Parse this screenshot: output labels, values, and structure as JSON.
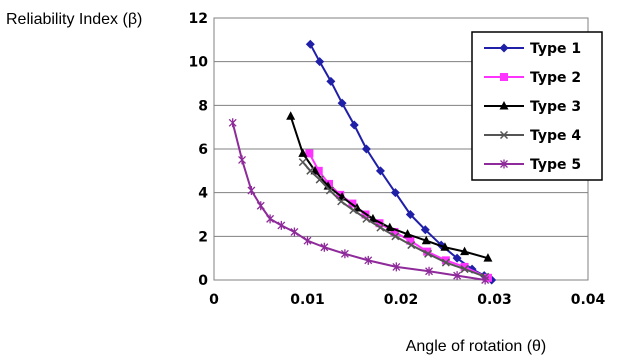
{
  "chart_data": {
    "type": "line",
    "title": "",
    "xlabel": "Angle of rotation (θ)",
    "ylabel": "Reliability Index (β)",
    "xlim": [
      0,
      0.04
    ],
    "ylim": [
      0,
      12
    ],
    "x_ticks": [
      "0",
      "0.01",
      "0.02",
      "0.03",
      "0.04"
    ],
    "y_ticks": [
      "0",
      "2",
      "4",
      "6",
      "8",
      "10",
      "12"
    ],
    "grid": "horizontal",
    "legend_position": "top-right",
    "series": [
      {
        "name": "Type 1",
        "color": "#1f1fa8",
        "marker": "diamond",
        "x": [
          0.0103,
          0.0113,
          0.0125,
          0.0137,
          0.015,
          0.0163,
          0.0178,
          0.0194,
          0.021,
          0.0226,
          0.0243,
          0.026,
          0.0276,
          0.0289,
          0.0297
        ],
        "y": [
          10.8,
          10.0,
          9.1,
          8.1,
          7.1,
          6.0,
          5.0,
          4.0,
          3.0,
          2.3,
          1.6,
          1.0,
          0.5,
          0.2,
          0.0
        ]
      },
      {
        "name": "Type 2",
        "color": "#ff33ff",
        "marker": "square",
        "x": [
          0.0102,
          0.0112,
          0.0123,
          0.0135,
          0.0148,
          0.0162,
          0.0177,
          0.0193,
          0.021,
          0.0228,
          0.0248,
          0.0268,
          0.0293
        ],
        "y": [
          5.8,
          5.0,
          4.4,
          3.9,
          3.5,
          3.0,
          2.6,
          2.2,
          1.8,
          1.3,
          0.9,
          0.6,
          0.1
        ]
      },
      {
        "name": "Type 3",
        "color": "#000000",
        "marker": "triangle",
        "x": [
          0.0082,
          0.0095,
          0.0108,
          0.0122,
          0.0137,
          0.0153,
          0.017,
          0.0188,
          0.0207,
          0.0227,
          0.0247,
          0.0268,
          0.0293
        ],
        "y": [
          7.5,
          5.8,
          5.0,
          4.3,
          3.8,
          3.3,
          2.8,
          2.4,
          2.1,
          1.8,
          1.5,
          1.3,
          1.0
        ]
      },
      {
        "name": "Type 4",
        "color": "#555555",
        "marker": "x",
        "x": [
          0.0095,
          0.0103,
          0.0113,
          0.0124,
          0.0136,
          0.0149,
          0.0163,
          0.0178,
          0.0194,
          0.0211,
          0.0229,
          0.0248,
          0.0268,
          0.029
        ],
        "y": [
          5.4,
          5.0,
          4.6,
          4.1,
          3.6,
          3.2,
          2.8,
          2.4,
          2.0,
          1.6,
          1.2,
          0.8,
          0.5,
          0.15
        ]
      },
      {
        "name": "Type 5",
        "color": "#8e2a9a",
        "marker": "asterisk",
        "x": [
          0.002,
          0.003,
          0.004,
          0.005,
          0.006,
          0.0072,
          0.0086,
          0.01,
          0.0118,
          0.014,
          0.0165,
          0.0195,
          0.023,
          0.026,
          0.029
        ],
        "y": [
          7.2,
          5.5,
          4.1,
          3.4,
          2.8,
          2.5,
          2.2,
          1.8,
          1.5,
          1.2,
          0.9,
          0.6,
          0.4,
          0.2,
          0.0
        ]
      }
    ]
  }
}
